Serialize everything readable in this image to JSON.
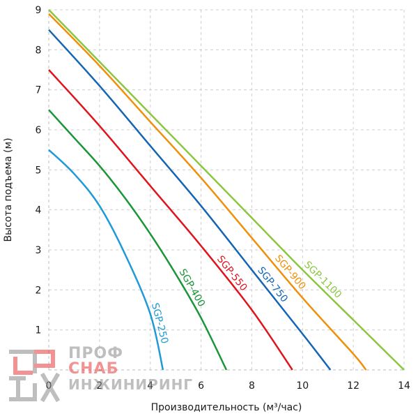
{
  "chart_data": {
    "type": "line",
    "xlabel": "Производительность (м³/час)",
    "ylabel": "Высота подъема (м)",
    "xlim": [
      0,
      14
    ],
    "ylim": [
      0,
      9
    ],
    "xticks": [
      0,
      2,
      4,
      6,
      8,
      10,
      12,
      14
    ],
    "yticks": [
      1,
      2,
      3,
      4,
      5,
      6,
      7,
      8,
      9
    ],
    "grid": true,
    "series": [
      {
        "name": "SGP-250",
        "color": "#1e9ad6",
        "points": [
          [
            0,
            5.5
          ],
          [
            1,
            4.9
          ],
          [
            2,
            4.1
          ],
          [
            3,
            2.9
          ],
          [
            4,
            1.4
          ],
          [
            4.5,
            0
          ]
        ]
      },
      {
        "name": "SGP-400",
        "color": "#1a9639",
        "points": [
          [
            0,
            6.5
          ],
          [
            1,
            5.8
          ],
          [
            2,
            5.1
          ],
          [
            3,
            4.3
          ],
          [
            4,
            3.4
          ],
          [
            5,
            2.4
          ],
          [
            6,
            1.3
          ],
          [
            7,
            0
          ]
        ]
      },
      {
        "name": "SGP-550",
        "color": "#e0141c",
        "points": [
          [
            0,
            7.5
          ],
          [
            2,
            6.1
          ],
          [
            4,
            4.6
          ],
          [
            6,
            3.1
          ],
          [
            8,
            1.5
          ],
          [
            9.6,
            0
          ]
        ]
      },
      {
        "name": "SGP-750",
        "color": "#1565b5",
        "points": [
          [
            0,
            8.5
          ],
          [
            2,
            7.1
          ],
          [
            4,
            5.6
          ],
          [
            6,
            4.1
          ],
          [
            8,
            2.5
          ],
          [
            10,
            0.9
          ],
          [
            11.1,
            0
          ]
        ]
      },
      {
        "name": "SGP-900",
        "color": "#f0900a",
        "points": [
          [
            0,
            8.9
          ],
          [
            2,
            7.6
          ],
          [
            4,
            6.2
          ],
          [
            6,
            4.8
          ],
          [
            8,
            3.3
          ],
          [
            10,
            1.8
          ],
          [
            12,
            0.4
          ],
          [
            12.5,
            0
          ]
        ]
      },
      {
        "name": "SGP-1100",
        "color": "#8cc63f",
        "points": [
          [
            0,
            9.0
          ],
          [
            2,
            7.7
          ],
          [
            4,
            6.4
          ],
          [
            6,
            5.1
          ],
          [
            8,
            3.8
          ],
          [
            10,
            2.5
          ],
          [
            12,
            1.25
          ],
          [
            14,
            0
          ]
        ]
      }
    ]
  },
  "watermark": {
    "line1": "ПРОФ",
    "line2": "СНАБ",
    "line3": "ИНЖИНИРИНГ",
    "color_red": "#e83a3a",
    "color_gray": "#8a8a8a"
  }
}
